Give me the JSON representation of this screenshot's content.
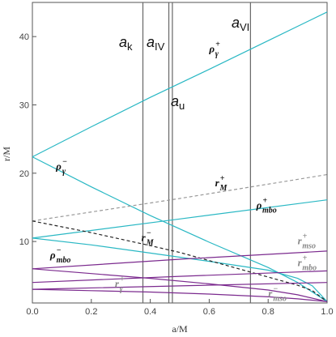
{
  "chart_data": {
    "type": "line",
    "xlabel": "a/M",
    "ylabel": "r/M",
    "xlim": [
      0,
      1
    ],
    "ylim": [
      1,
      45
    ],
    "x_ticks": [
      "0.0",
      "0.2",
      "0.4",
      "0.6",
      "0.8",
      "1.0"
    ],
    "y_ticks": [
      "10",
      "20",
      "30",
      "40"
    ],
    "vertical_lines": [
      {
        "label": "a_k",
        "name": "ak",
        "x": 0.375
      },
      {
        "label": "a_IV",
        "name": "aIV",
        "x": 0.463
      },
      {
        "label": "a_u",
        "name": "au",
        "x": 0.475
      },
      {
        "label": "a_VI",
        "name": "aVI",
        "x": 0.74
      }
    ],
    "series": [
      {
        "label": "ρ+γ",
        "name": "rho-gamma-plus",
        "color": "#2ab8c4",
        "dash": false,
        "x": [
          0,
          0.2,
          0.4,
          0.6,
          0.8,
          1.0
        ],
        "y": [
          22.4,
          26.8,
          31.1,
          35.2,
          39.4,
          43.6
        ]
      },
      {
        "label": "ρ−γ",
        "name": "rho-gamma-minus",
        "color": "#2ab8c4",
        "dash": false,
        "x": [
          0,
          0.2,
          0.4,
          0.6,
          0.8,
          0.9,
          1.0
        ],
        "y": [
          22.4,
          18.0,
          13.8,
          9.9,
          6.2,
          4.0,
          1.2
        ]
      },
      {
        "label": "ρ+mbo",
        "name": "rho-mbo-plus",
        "color": "#2ab8c4",
        "dash": false,
        "x": [
          0,
          0.5,
          1.0
        ],
        "y": [
          10.5,
          13.3,
          16.1
        ]
      },
      {
        "label": "ρ−mbo",
        "name": "rho-mbo-minus",
        "color": "#2ab8c4",
        "dash": false,
        "x": [
          0,
          0.2,
          0.4,
          0.6,
          0.8,
          0.9,
          0.95,
          1.0
        ],
        "y": [
          10.5,
          9.5,
          8.3,
          7.1,
          5.8,
          4.6,
          3.5,
          1.2
        ]
      },
      {
        "label": "r+M",
        "name": "r-M-plus",
        "color": "#999999",
        "dash": true,
        "x": [
          0,
          0.5,
          1.0
        ],
        "y": [
          13.0,
          16.3,
          19.8
        ]
      },
      {
        "label": "r−M",
        "name": "r-M-minus",
        "color": "#222222",
        "dash": true,
        "x": [
          0,
          0.2,
          0.4,
          0.5,
          0.6,
          0.7,
          0.8,
          0.9,
          0.95,
          1.0
        ],
        "y": [
          13.0,
          11.3,
          9.4,
          8.4,
          7.2,
          6.0,
          4.8,
          3.6,
          2.8,
          1.2
        ]
      },
      {
        "label": "r+mso",
        "name": "r-mso-plus",
        "color": "#7b2a8e",
        "dash": false,
        "x": [
          0,
          0.5,
          1.0
        ],
        "y": [
          6.0,
          7.4,
          8.6
        ]
      },
      {
        "label": "r−mso",
        "name": "r-mso-minus",
        "color": "#7b2a8e",
        "dash": false,
        "x": [
          0,
          0.2,
          0.4,
          0.6,
          0.8,
          0.9,
          1.0
        ],
        "y": [
          6.0,
          5.3,
          4.6,
          3.8,
          2.9,
          2.2,
          1.2
        ]
      },
      {
        "label": "r+mbo",
        "name": "r-mbo-plus",
        "color": "#7b2a8e",
        "dash": false,
        "x": [
          0,
          0.5,
          1.0
        ],
        "y": [
          4.0,
          4.9,
          5.7
        ]
      },
      {
        "label": "r+γ",
        "name": "r-gamma-plus",
        "color": "#7b2a8e",
        "dash": false,
        "x": [
          0,
          0.5,
          1.0
        ],
        "y": [
          3.0,
          3.5,
          4.0
        ]
      },
      {
        "label": "",
        "name": "r-gamma-minus",
        "color": "#7b2a8e",
        "dash": false,
        "x": [
          0,
          0.2,
          0.4,
          0.6,
          0.8,
          0.9,
          1.0
        ],
        "y": [
          3.0,
          2.8,
          2.6,
          2.3,
          1.9,
          1.6,
          1.2
        ]
      }
    ],
    "curve_labels": [
      {
        "name": "rho-gamma-plus-label",
        "base": "ρ",
        "sup": "+",
        "sub": "γ",
        "color": "#111111",
        "x": 0.6,
        "y": 37.7
      },
      {
        "name": "rho-gamma-minus-label",
        "base": "ρ",
        "sup": "−",
        "sub": "γ",
        "color": "#111111",
        "x": 0.08,
        "y": 20.5
      },
      {
        "name": "r-M-plus-label",
        "base": "r",
        "sup": "+",
        "sub": "M",
        "color": "#111111",
        "x": 0.62,
        "y": 18.1
      },
      {
        "name": "rho-mbo-plus-label",
        "base": "ρ",
        "sup": "+",
        "sub": "mbo",
        "color": "#111111",
        "x": 0.76,
        "y": 14.8
      },
      {
        "name": "r-M-minus-label",
        "base": "r",
        "sup": "−",
        "sub": "M",
        "color": "#111111",
        "x": 0.37,
        "y": 10.1
      },
      {
        "name": "rho-mbo-minus-label",
        "base": "ρ",
        "sup": "−",
        "sub": "mbo",
        "color": "#111111",
        "x": 0.06,
        "y": 7.5
      },
      {
        "name": "r-mso-plus-label",
        "base": "r",
        "sup": "+",
        "sub": "mso",
        "color": "#888888",
        "x": 0.9,
        "y": 9.6
      },
      {
        "name": "r-mbo-plus-label",
        "base": "r",
        "sup": "+",
        "sub": "mbo",
        "color": "#888888",
        "x": 0.9,
        "y": 6.4
      },
      {
        "name": "r-gamma-plus-label",
        "base": "r",
        "sup": "+",
        "sub": "γ",
        "color": "#888888",
        "x": 0.28,
        "y": 3.3
      },
      {
        "name": "r-mso-minus-label",
        "base": "r",
        "sup": "−",
        "sub": "mso",
        "color": "#888888",
        "x": 0.8,
        "y": 1.9
      }
    ]
  }
}
